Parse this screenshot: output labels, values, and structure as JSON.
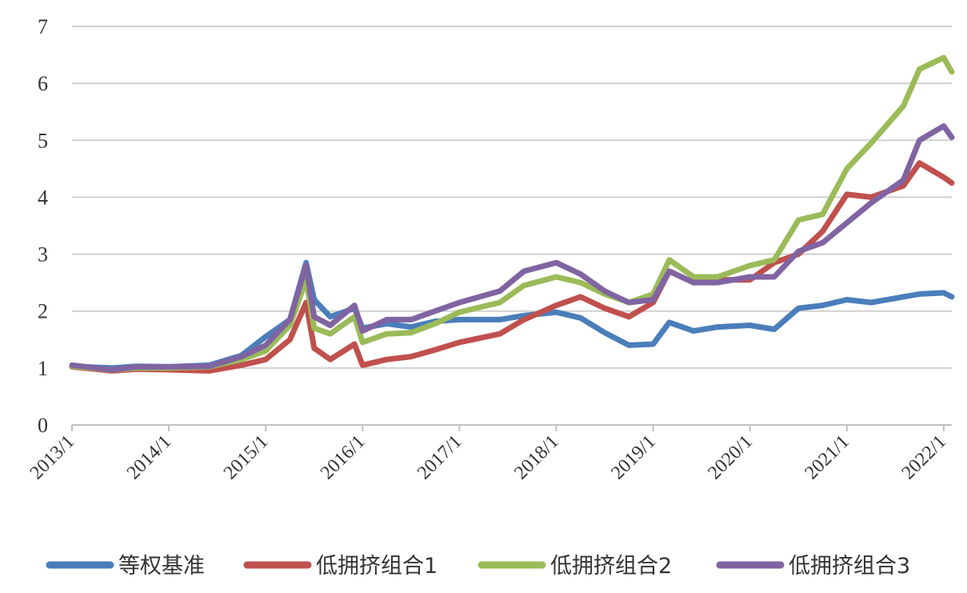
{
  "chart_data": {
    "type": "line",
    "title": "",
    "xlabel": "",
    "ylabel": "",
    "ylim": [
      0,
      7
    ],
    "yticks": [
      0,
      1,
      2,
      3,
      4,
      5,
      6,
      7
    ],
    "grid": true,
    "legend_position": "bottom",
    "x_tick_labels": [
      "2013/1",
      "2014/1",
      "2015/1",
      "2016/1",
      "2017/1",
      "2018/1",
      "2019/1",
      "2020/1",
      "2021/1",
      "2022/1"
    ],
    "x_start": "2013-01",
    "x_end": "2022-02",
    "series": [
      {
        "name": "等权基准",
        "color": "#4a7ebb",
        "points": [
          [
            "2013-01",
            1.03
          ],
          [
            "2013-06",
            1.0
          ],
          [
            "2013-09",
            1.03
          ],
          [
            "2014-01",
            1.02
          ],
          [
            "2014-06",
            1.05
          ],
          [
            "2014-10",
            1.22
          ],
          [
            "2015-01",
            1.55
          ],
          [
            "2015-04",
            1.85
          ],
          [
            "2015-06",
            2.85
          ],
          [
            "2015-07",
            2.2
          ],
          [
            "2015-09",
            1.9
          ],
          [
            "2015-12",
            2.05
          ],
          [
            "2016-01",
            1.7
          ],
          [
            "2016-04",
            1.78
          ],
          [
            "2016-07",
            1.72
          ],
          [
            "2016-10",
            1.82
          ],
          [
            "2017-01",
            1.85
          ],
          [
            "2017-06",
            1.85
          ],
          [
            "2017-09",
            1.92
          ],
          [
            "2018-01",
            1.98
          ],
          [
            "2018-04",
            1.88
          ],
          [
            "2018-07",
            1.62
          ],
          [
            "2018-10",
            1.4
          ],
          [
            "2019-01",
            1.42
          ],
          [
            "2019-03",
            1.8
          ],
          [
            "2019-06",
            1.65
          ],
          [
            "2019-09",
            1.72
          ],
          [
            "2020-01",
            1.75
          ],
          [
            "2020-04",
            1.68
          ],
          [
            "2020-07",
            2.05
          ],
          [
            "2020-10",
            2.1
          ],
          [
            "2021-01",
            2.2
          ],
          [
            "2021-04",
            2.15
          ],
          [
            "2021-08",
            2.25
          ],
          [
            "2021-10",
            2.3
          ],
          [
            "2022-01",
            2.32
          ],
          [
            "2022-02",
            2.25
          ]
        ]
      },
      {
        "name": "低拥挤组合1",
        "color": "#c0504d",
        "points": [
          [
            "2013-01",
            1.02
          ],
          [
            "2013-06",
            0.95
          ],
          [
            "2013-09",
            0.98
          ],
          [
            "2014-01",
            0.97
          ],
          [
            "2014-06",
            0.95
          ],
          [
            "2014-10",
            1.05
          ],
          [
            "2015-01",
            1.15
          ],
          [
            "2015-04",
            1.5
          ],
          [
            "2015-06",
            2.15
          ],
          [
            "2015-07",
            1.35
          ],
          [
            "2015-09",
            1.15
          ],
          [
            "2015-12",
            1.42
          ],
          [
            "2016-01",
            1.05
          ],
          [
            "2016-04",
            1.15
          ],
          [
            "2016-07",
            1.2
          ],
          [
            "2016-10",
            1.32
          ],
          [
            "2017-01",
            1.45
          ],
          [
            "2017-06",
            1.6
          ],
          [
            "2017-09",
            1.85
          ],
          [
            "2018-01",
            2.1
          ],
          [
            "2018-04",
            2.25
          ],
          [
            "2018-07",
            2.05
          ],
          [
            "2018-10",
            1.9
          ],
          [
            "2019-01",
            2.15
          ],
          [
            "2019-03",
            2.7
          ],
          [
            "2019-06",
            2.5
          ],
          [
            "2019-09",
            2.55
          ],
          [
            "2020-01",
            2.55
          ],
          [
            "2020-04",
            2.85
          ],
          [
            "2020-07",
            3.0
          ],
          [
            "2020-10",
            3.4
          ],
          [
            "2021-01",
            4.05
          ],
          [
            "2021-04",
            4.0
          ],
          [
            "2021-08",
            4.2
          ],
          [
            "2021-10",
            4.6
          ],
          [
            "2022-01",
            4.35
          ],
          [
            "2022-02",
            4.25
          ]
        ]
      },
      {
        "name": "低拥挤组合2",
        "color": "#9bbb59",
        "points": [
          [
            "2013-01",
            1.03
          ],
          [
            "2013-06",
            0.97
          ],
          [
            "2013-09",
            1.0
          ],
          [
            "2014-01",
            1.0
          ],
          [
            "2014-06",
            1.02
          ],
          [
            "2014-10",
            1.15
          ],
          [
            "2015-01",
            1.3
          ],
          [
            "2015-04",
            1.75
          ],
          [
            "2015-06",
            2.55
          ],
          [
            "2015-07",
            1.7
          ],
          [
            "2015-09",
            1.6
          ],
          [
            "2015-12",
            1.9
          ],
          [
            "2016-01",
            1.45
          ],
          [
            "2016-04",
            1.6
          ],
          [
            "2016-07",
            1.62
          ],
          [
            "2016-10",
            1.78
          ],
          [
            "2017-01",
            1.98
          ],
          [
            "2017-06",
            2.15
          ],
          [
            "2017-09",
            2.45
          ],
          [
            "2018-01",
            2.6
          ],
          [
            "2018-04",
            2.5
          ],
          [
            "2018-07",
            2.3
          ],
          [
            "2018-10",
            2.15
          ],
          [
            "2019-01",
            2.3
          ],
          [
            "2019-03",
            2.9
          ],
          [
            "2019-06",
            2.6
          ],
          [
            "2019-09",
            2.6
          ],
          [
            "2020-01",
            2.8
          ],
          [
            "2020-04",
            2.9
          ],
          [
            "2020-07",
            3.6
          ],
          [
            "2020-10",
            3.7
          ],
          [
            "2021-01",
            4.5
          ],
          [
            "2021-04",
            4.95
          ],
          [
            "2021-08",
            5.6
          ],
          [
            "2021-10",
            6.25
          ],
          [
            "2022-01",
            6.45
          ],
          [
            "2022-02",
            6.2
          ]
        ]
      },
      {
        "name": "低拥挤组合3",
        "color": "#8064a2",
        "points": [
          [
            "2013-01",
            1.05
          ],
          [
            "2013-06",
            0.97
          ],
          [
            "2013-09",
            1.02
          ],
          [
            "2014-01",
            1.02
          ],
          [
            "2014-06",
            1.03
          ],
          [
            "2014-10",
            1.2
          ],
          [
            "2015-01",
            1.4
          ],
          [
            "2015-04",
            1.85
          ],
          [
            "2015-06",
            2.8
          ],
          [
            "2015-07",
            1.9
          ],
          [
            "2015-09",
            1.75
          ],
          [
            "2015-12",
            2.1
          ],
          [
            "2016-01",
            1.65
          ],
          [
            "2016-04",
            1.85
          ],
          [
            "2016-07",
            1.85
          ],
          [
            "2016-10",
            2.0
          ],
          [
            "2017-01",
            2.15
          ],
          [
            "2017-06",
            2.35
          ],
          [
            "2017-09",
            2.7
          ],
          [
            "2018-01",
            2.85
          ],
          [
            "2018-04",
            2.65
          ],
          [
            "2018-07",
            2.35
          ],
          [
            "2018-10",
            2.15
          ],
          [
            "2019-01",
            2.2
          ],
          [
            "2019-03",
            2.7
          ],
          [
            "2019-06",
            2.5
          ],
          [
            "2019-09",
            2.5
          ],
          [
            "2020-01",
            2.6
          ],
          [
            "2020-04",
            2.6
          ],
          [
            "2020-07",
            3.05
          ],
          [
            "2020-10",
            3.2
          ],
          [
            "2021-01",
            3.55
          ],
          [
            "2021-04",
            3.9
          ],
          [
            "2021-08",
            4.3
          ],
          [
            "2021-10",
            5.0
          ],
          [
            "2022-01",
            5.25
          ],
          [
            "2022-02",
            5.05
          ]
        ]
      }
    ]
  }
}
